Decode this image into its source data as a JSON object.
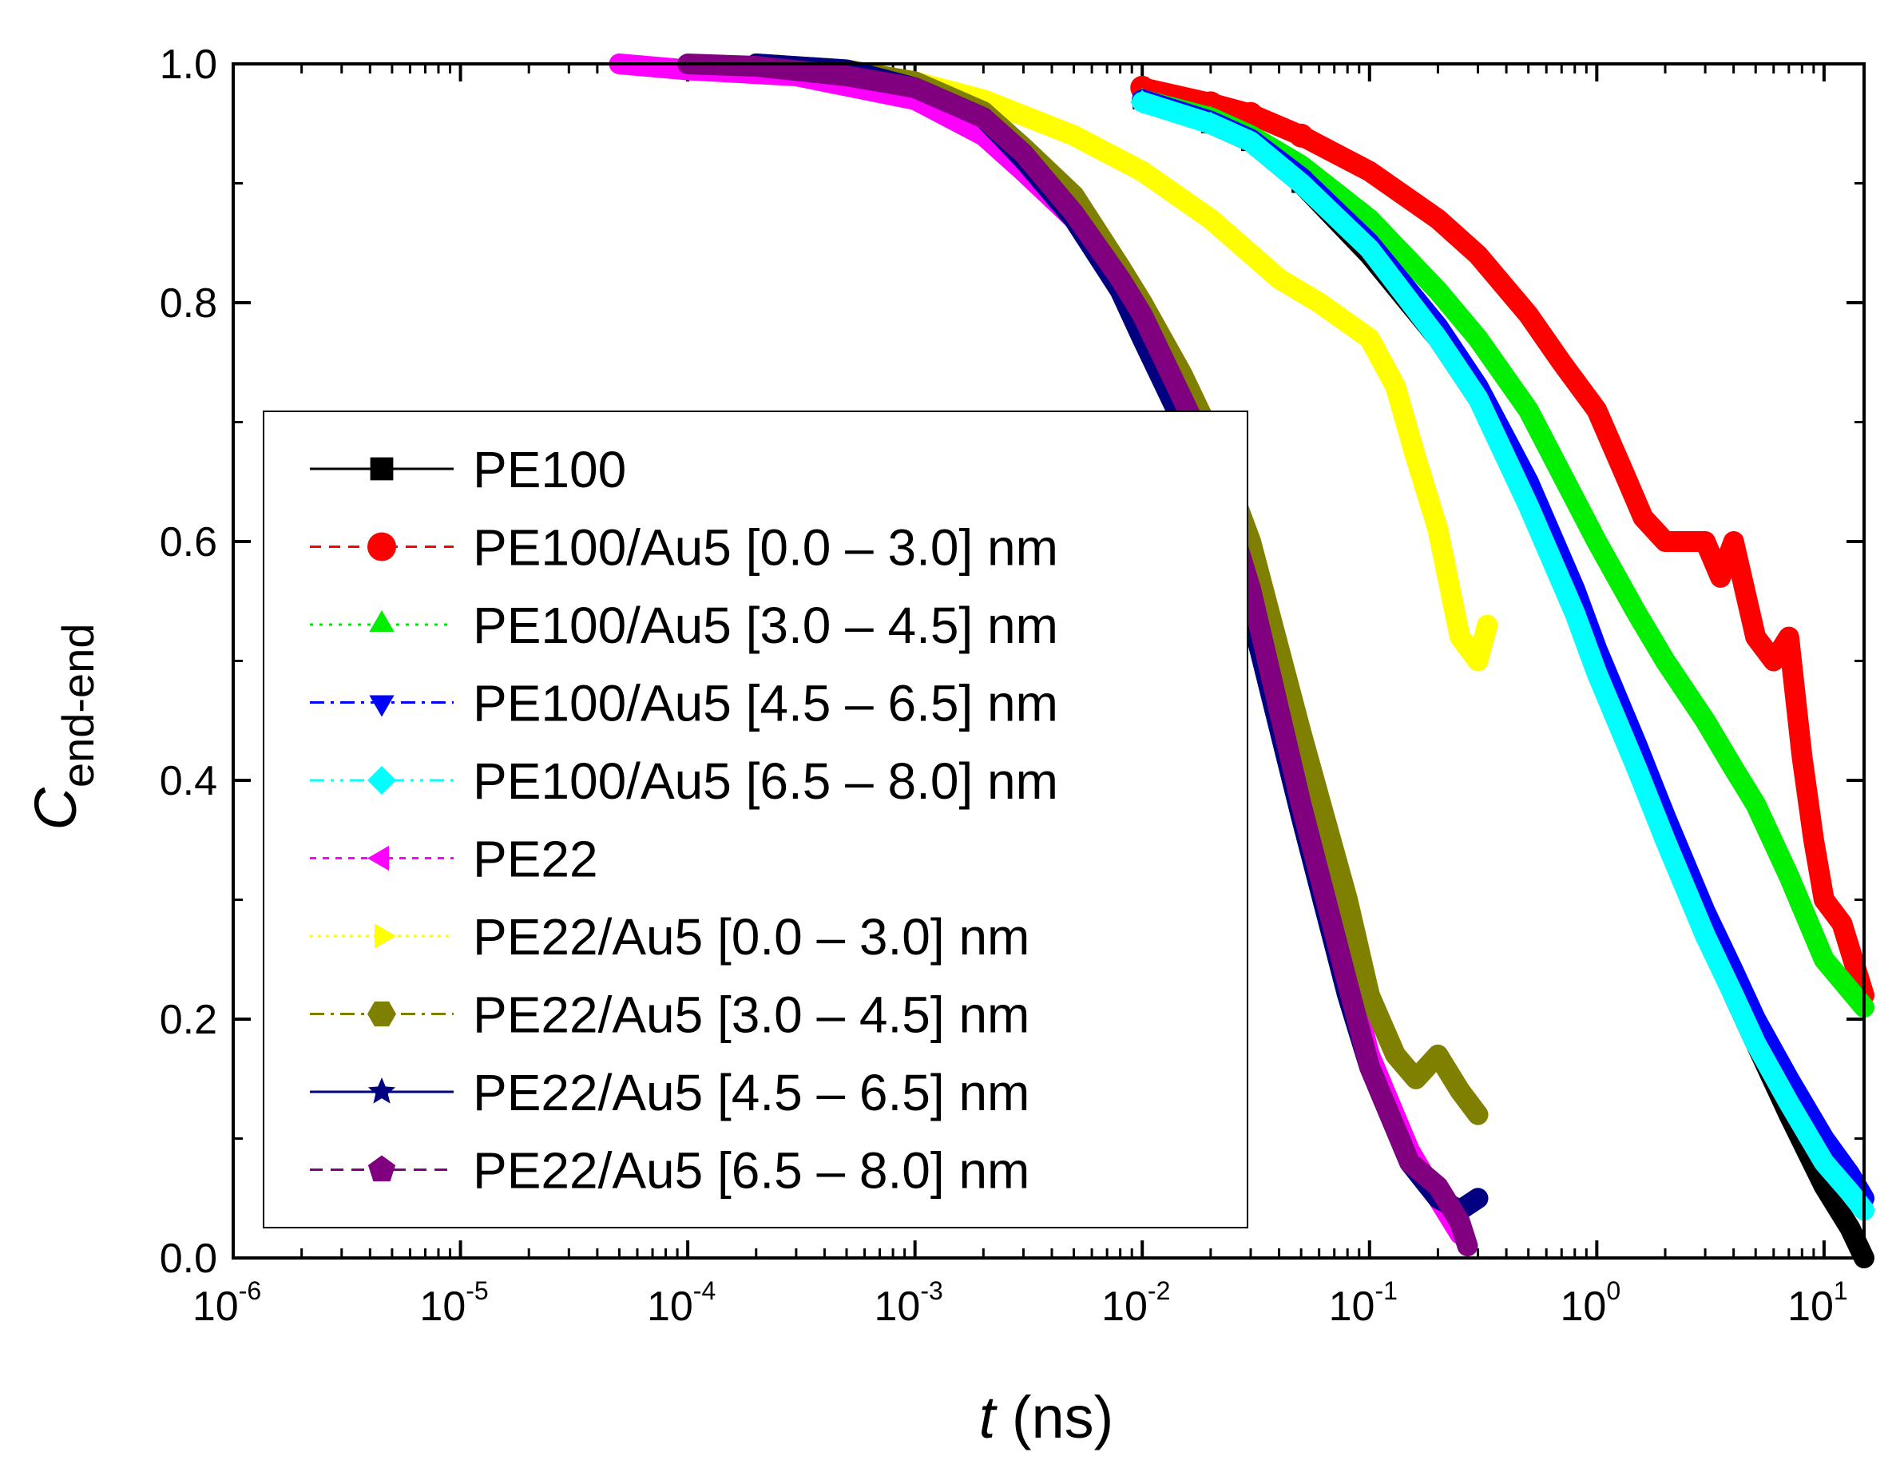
{
  "chart_data": {
    "type": "line",
    "title": "",
    "xlabel_italic": "t",
    "xlabel_unit": " (ns)",
    "ylabel_main": "C",
    "ylabel_sub": "end-end",
    "xscale": "log",
    "xlim": [
      1e-06,
      15
    ],
    "ylim": [
      0.0,
      1.0
    ],
    "y_ticks": [
      "0.0",
      "0.2",
      "0.4",
      "0.6",
      "0.8",
      "1.0"
    ],
    "x_ticks": [
      {
        "base": "10",
        "exp": "-6"
      },
      {
        "base": "10",
        "exp": "-5"
      },
      {
        "base": "10",
        "exp": "-4"
      },
      {
        "base": "10",
        "exp": "-3"
      },
      {
        "base": "10",
        "exp": "-2"
      },
      {
        "base": "10",
        "exp": "-1"
      },
      {
        "base": "10",
        "exp": "0"
      },
      {
        "base": "10",
        "exp": "1"
      }
    ],
    "legend_position": "center-left",
    "series": [
      {
        "name": "PE100",
        "color": "#000000",
        "dash": "",
        "marker": "square",
        "x": [
          0.01,
          0.02,
          0.03,
          0.05,
          0.1,
          0.2,
          0.3,
          0.5,
          0.8,
          1.0,
          1.5,
          2,
          3,
          4,
          5,
          7,
          10,
          13,
          15
        ],
        "y": [
          0.97,
          0.95,
          0.935,
          0.9,
          0.84,
          0.77,
          0.72,
          0.64,
          0.55,
          0.5,
          0.42,
          0.36,
          0.28,
          0.22,
          0.18,
          0.12,
          0.06,
          0.025,
          0.0
        ]
      },
      {
        "name": "PE100/Au5 [0.0 – 3.0] nm",
        "color": "#ff0000",
        "dash": "14,10",
        "marker": "circle",
        "x": [
          0.01,
          0.02,
          0.03,
          0.05,
          0.1,
          0.2,
          0.3,
          0.5,
          0.7,
          1.0,
          1.3,
          1.6,
          2,
          3,
          3.5,
          4,
          5,
          6,
          7,
          8,
          9,
          10,
          12,
          15
        ],
        "y": [
          0.98,
          0.967,
          0.958,
          0.94,
          0.91,
          0.87,
          0.84,
          0.79,
          0.75,
          0.71,
          0.66,
          0.62,
          0.6,
          0.6,
          0.57,
          0.6,
          0.52,
          0.5,
          0.52,
          0.42,
          0.35,
          0.3,
          0.28,
          0.22
        ]
      },
      {
        "name": "PE100/Au5 [3.0 – 4.5] nm",
        "color": "#00ee00",
        "dash": "4,8",
        "marker": "triangle-up",
        "x": [
          0.01,
          0.02,
          0.03,
          0.05,
          0.1,
          0.2,
          0.3,
          0.5,
          1.0,
          1.5,
          2,
          3,
          4,
          5,
          7,
          10,
          15
        ],
        "y": [
          0.97,
          0.955,
          0.94,
          0.915,
          0.87,
          0.81,
          0.77,
          0.71,
          0.6,
          0.54,
          0.5,
          0.45,
          0.41,
          0.38,
          0.32,
          0.25,
          0.21
        ]
      },
      {
        "name": "PE100/Au5 [4.5 – 6.5] nm",
        "color": "#0000ff",
        "dash": "18,8,4,8",
        "marker": "triangle-down",
        "x": [
          0.01,
          0.02,
          0.03,
          0.05,
          0.1,
          0.2,
          0.3,
          0.5,
          0.8,
          1.0,
          1.5,
          2,
          3,
          4,
          5,
          7,
          10,
          13,
          15
        ],
        "y": [
          0.97,
          0.952,
          0.937,
          0.905,
          0.85,
          0.78,
          0.73,
          0.65,
          0.56,
          0.51,
          0.43,
          0.37,
          0.29,
          0.24,
          0.2,
          0.15,
          0.1,
          0.07,
          0.05
        ]
      },
      {
        "name": "PE100/Au5 [6.5 – 8.0] nm",
        "color": "#00ffff",
        "dash": "18,8,4,8,4,8",
        "marker": "diamond",
        "x": [
          0.01,
          0.02,
          0.03,
          0.05,
          0.1,
          0.2,
          0.3,
          0.5,
          0.8,
          1.0,
          1.5,
          2,
          3,
          4,
          5,
          7,
          10,
          13,
          15
        ],
        "y": [
          0.968,
          0.95,
          0.935,
          0.9,
          0.845,
          0.77,
          0.72,
          0.63,
          0.54,
          0.49,
          0.41,
          0.35,
          0.27,
          0.22,
          0.18,
          0.13,
          0.08,
          0.055,
          0.04
        ]
      },
      {
        "name": "PE22",
        "color": "#ff00ff",
        "dash": "8,8",
        "marker": "triangle-left",
        "x": [
          5e-05,
          0.0001,
          0.0003,
          0.001,
          0.002,
          0.003,
          0.005,
          0.008,
          0.01,
          0.015,
          0.02,
          0.03,
          0.05,
          0.08,
          0.1,
          0.15,
          0.2,
          0.25
        ],
        "y": [
          1.0,
          0.995,
          0.99,
          0.97,
          0.94,
          0.91,
          0.87,
          0.82,
          0.79,
          0.73,
          0.68,
          0.57,
          0.4,
          0.24,
          0.17,
          0.09,
          0.05,
          0.02
        ]
      },
      {
        "name": "PE22/Au5 [0.0 – 3.0] nm",
        "color": "#ffff00",
        "dash": "4,6",
        "marker": "triangle-right",
        "x": [
          0.0002,
          0.0005,
          0.001,
          0.002,
          0.005,
          0.01,
          0.02,
          0.04,
          0.06,
          0.1,
          0.13,
          0.16,
          0.2,
          0.25,
          0.3,
          0.33
        ],
        "y": [
          1.0,
          0.995,
          0.985,
          0.97,
          0.94,
          0.91,
          0.87,
          0.82,
          0.8,
          0.77,
          0.73,
          0.67,
          0.61,
          0.52,
          0.5,
          0.53
        ]
      },
      {
        "name": "PE22/Au5 [3.0 – 4.5] nm",
        "color": "#808000",
        "dash": "18,8,4,8",
        "marker": "hexagon",
        "x": [
          0.0002,
          0.0005,
          0.001,
          0.002,
          0.003,
          0.005,
          0.008,
          0.01,
          0.015,
          0.02,
          0.03,
          0.05,
          0.08,
          0.1,
          0.13,
          0.16,
          0.2,
          0.25,
          0.3
        ],
        "y": [
          1.0,
          0.995,
          0.985,
          0.96,
          0.93,
          0.89,
          0.83,
          0.8,
          0.74,
          0.69,
          0.6,
          0.44,
          0.3,
          0.22,
          0.17,
          0.15,
          0.17,
          0.14,
          0.12
        ]
      },
      {
        "name": "PE22/Au5 [4.5 – 6.5] nm",
        "color": "#000080",
        "dash": "",
        "marker": "star",
        "x": [
          0.0002,
          0.0005,
          0.001,
          0.002,
          0.003,
          0.005,
          0.008,
          0.01,
          0.015,
          0.02,
          0.03,
          0.05,
          0.08,
          0.1,
          0.15,
          0.2,
          0.25,
          0.3
        ],
        "y": [
          1.0,
          0.995,
          0.98,
          0.955,
          0.92,
          0.87,
          0.81,
          0.77,
          0.7,
          0.65,
          0.54,
          0.37,
          0.22,
          0.16,
          0.08,
          0.05,
          0.04,
          0.05
        ]
      },
      {
        "name": "PE22/Au5 [6.5 – 8.0] nm",
        "color": "#800080",
        "dash": "16,10",
        "marker": "pentagon",
        "x": [
          0.0001,
          0.0002,
          0.0005,
          0.001,
          0.002,
          0.003,
          0.005,
          0.008,
          0.01,
          0.015,
          0.02,
          0.03,
          0.05,
          0.08,
          0.1,
          0.15,
          0.2,
          0.25,
          0.27
        ],
        "y": [
          1.0,
          0.998,
          0.99,
          0.98,
          0.955,
          0.925,
          0.875,
          0.82,
          0.79,
          0.72,
          0.67,
          0.56,
          0.38,
          0.23,
          0.16,
          0.08,
          0.06,
          0.03,
          0.01
        ]
      }
    ]
  }
}
